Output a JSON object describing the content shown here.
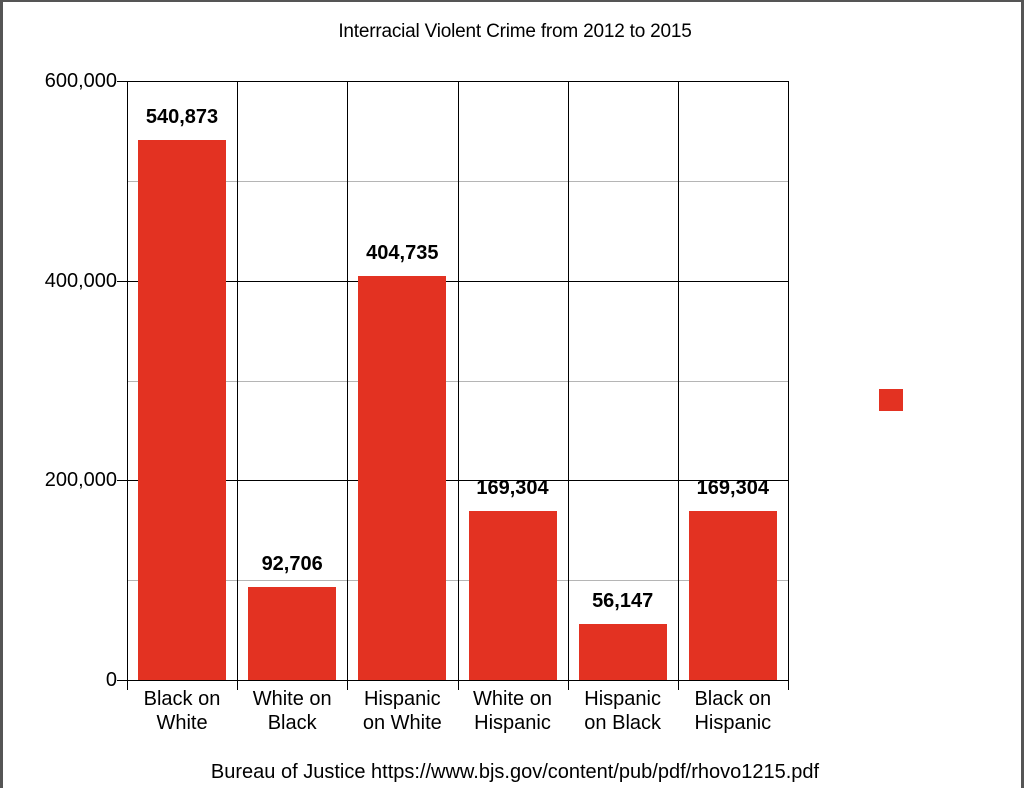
{
  "chart_data": {
    "type": "bar",
    "title": "Interracial Violent Crime from 2012 to 2015",
    "categories": [
      [
        "Black on",
        "White"
      ],
      [
        "White on",
        "Black"
      ],
      [
        "Hispanic",
        "on White"
      ],
      [
        "White on",
        "Hispanic"
      ],
      [
        "Hispanic",
        "on Black"
      ],
      [
        "Black on",
        "Hispanic"
      ]
    ],
    "values": [
      540873,
      92706,
      404735,
      169304,
      56147,
      169304
    ],
    "value_labels": [
      "540,873",
      "92,706",
      "404,735",
      "169,304",
      "56,147",
      "169,304"
    ],
    "xlabel": "",
    "ylabel": "",
    "ylim": [
      0,
      600000
    ],
    "yticks": [
      {
        "value": 600000,
        "label": "600,000"
      },
      {
        "value": 400000,
        "label": "400,000"
      },
      {
        "value": 200000,
        "label": "200,000"
      },
      {
        "value": 0,
        "label": "0"
      }
    ],
    "minor_gridlines": [
      500000,
      300000,
      100000
    ],
    "grid": true,
    "legend": {
      "position": "right",
      "entries": [
        ""
      ]
    },
    "bar_color": "#e33222",
    "source": "Bureau of Justice https://www.bjs.gov/content/pub/pdf/rhovo1215.pdf"
  }
}
